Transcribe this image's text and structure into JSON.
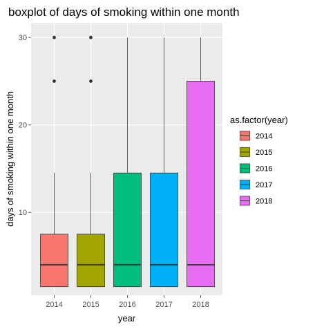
{
  "chart_data": {
    "type": "boxplot",
    "title": "boxplot of days of smoking within one month",
    "xlabel": "year",
    "ylabel": "days of smoking within one month",
    "categories": [
      "2014",
      "2015",
      "2016",
      "2017",
      "2018"
    ],
    "ylim": [
      0,
      31.5
    ],
    "yticks": [
      10,
      20,
      30
    ],
    "grid": true,
    "legend": {
      "title": "as.factor(year)",
      "position": "right",
      "entries": [
        "2014",
        "2015",
        "2016",
        "2017",
        "2018"
      ]
    },
    "colors": [
      "#F8766D",
      "#A3A500",
      "#00BF7D",
      "#00B0F6",
      "#E76BF3"
    ],
    "boxes": [
      {
        "category": "2014",
        "whisker_low": 1.5,
        "q1": 1.5,
        "median": 4,
        "q3": 7.5,
        "whisker_high": 14.5,
        "outliers": [
          25,
          30
        ]
      },
      {
        "category": "2015",
        "whisker_low": 1.5,
        "q1": 1.5,
        "median": 4,
        "q3": 7.5,
        "whisker_high": 14.5,
        "outliers": [
          25,
          30
        ]
      },
      {
        "category": "2016",
        "whisker_low": 1.5,
        "q1": 1.5,
        "median": 4,
        "q3": 14.5,
        "whisker_high": 30,
        "outliers": []
      },
      {
        "category": "2017",
        "whisker_low": 1.5,
        "q1": 1.5,
        "median": 4,
        "q3": 14.5,
        "whisker_high": 30,
        "outliers": []
      },
      {
        "category": "2018",
        "whisker_low": 1.5,
        "q1": 1.5,
        "median": 4,
        "q3": 25,
        "whisker_high": 30,
        "outliers": []
      }
    ]
  }
}
